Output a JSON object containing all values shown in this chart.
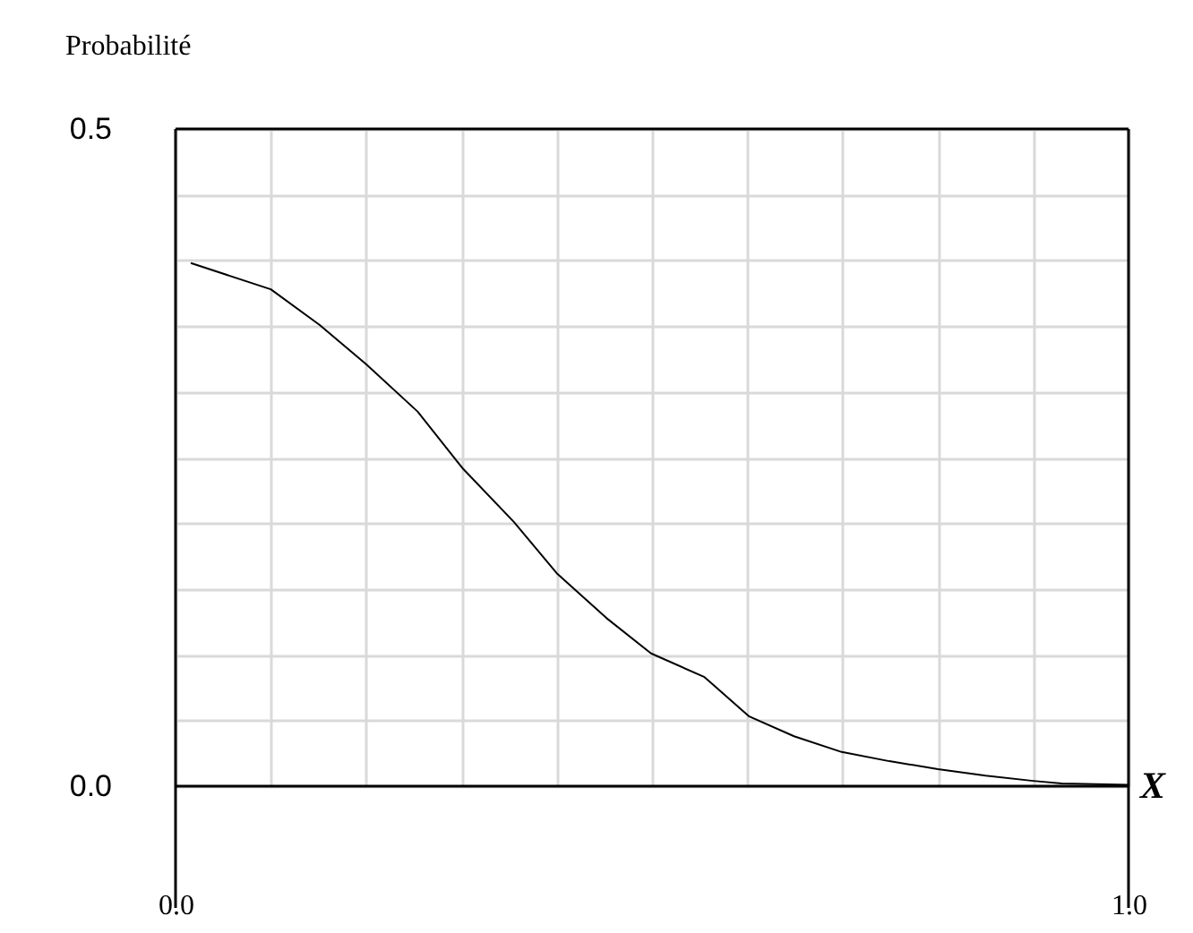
{
  "chart_data": {
    "type": "line",
    "xlabel": "X",
    "ylabel": "Probabilité",
    "x": [
      0.016,
      0.1,
      0.151,
      0.2,
      0.254,
      0.301,
      0.355,
      0.4,
      0.452,
      0.499,
      0.555,
      0.602,
      0.649,
      0.699,
      0.749,
      0.8,
      0.85,
      0.9,
      0.93,
      1.0
    ],
    "series": [
      {
        "color": "#000000",
        "values": [
          0.398,
          0.378,
          0.351,
          0.321,
          0.285,
          0.242,
          0.201,
          0.162,
          0.128,
          0.101,
          0.083,
          0.053,
          0.038,
          0.026,
          0.019,
          0.013,
          0.008,
          0.004,
          0.002,
          0.001
        ]
      }
    ],
    "xlim": [
      0,
      1
    ],
    "ylim": [
      0,
      0.5
    ],
    "xticks": [
      {
        "value": 0,
        "label": "0.0"
      },
      {
        "value": 0.1,
        "label": null
      },
      {
        "value": 0.2,
        "label": null
      },
      {
        "value": 0.3,
        "label": null
      },
      {
        "value": 0.4,
        "label": null
      },
      {
        "value": 0.5,
        "label": null
      },
      {
        "value": 0.6,
        "label": null
      },
      {
        "value": 0.7,
        "label": null
      },
      {
        "value": 0.8,
        "label": null
      },
      {
        "value": 0.9,
        "label": null
      },
      {
        "value": 1,
        "label": "1.0"
      }
    ],
    "yticks": [
      {
        "value": 0,
        "label": "0.0"
      },
      {
        "value": 0.05,
        "label": null
      },
      {
        "value": 0.1,
        "label": null
      },
      {
        "value": 0.15,
        "label": null
      },
      {
        "value": 0.2,
        "label": null
      },
      {
        "value": 0.25,
        "label": null
      },
      {
        "value": 0.3,
        "label": null
      },
      {
        "value": 0.35,
        "label": null
      },
      {
        "value": 0.4,
        "label": null
      },
      {
        "value": 0.45,
        "label": null
      },
      {
        "value": 0.5,
        "label": "0.5"
      }
    ],
    "grid": true,
    "marker": "none",
    "line_style": "solid"
  }
}
